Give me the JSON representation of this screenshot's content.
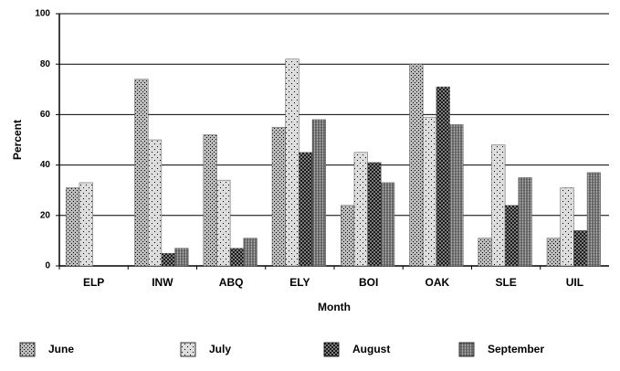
{
  "chart_data": {
    "type": "bar",
    "x_label": "Month",
    "y_label": "Percent",
    "categories": [
      "ELP",
      "INW",
      "ABQ",
      "ELY",
      "BOI",
      "OAK",
      "SLE",
      "UIL"
    ],
    "series": [
      {
        "name": "June",
        "color": "#bbbbbb",
        "values": [
          31,
          74,
          52,
          55,
          24,
          80,
          11,
          11
        ]
      },
      {
        "name": "July",
        "color": "#dddddd",
        "values": [
          33,
          50,
          34,
          82,
          45,
          59,
          48,
          31
        ]
      },
      {
        "name": "August",
        "color": "#999999",
        "values": [
          null,
          5,
          7,
          45,
          41,
          71,
          24,
          14
        ]
      },
      {
        "name": "September",
        "color": "#aaaaaa",
        "values": [
          null,
          7,
          11,
          58,
          33,
          56,
          35,
          37
        ]
      }
    ],
    "ylim": [
      0,
      100
    ],
    "yticks": [
      0,
      20,
      40,
      60,
      80,
      100
    ],
    "grid": true
  }
}
